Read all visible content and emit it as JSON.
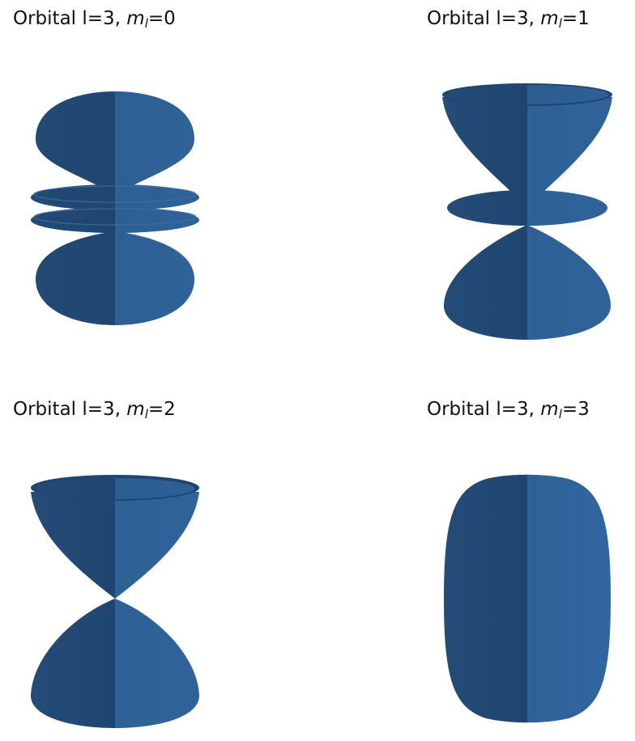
{
  "colors": {
    "dark": "#1e4670",
    "mid": "#2a5a8c",
    "light": "#3a78b8",
    "rim": "#234f7d"
  },
  "panels": [
    {
      "prefix": "Orbital l=3, ",
      "m": "m",
      "sub": "l",
      "eq": "=0",
      "shape": "orbital-l3-m0"
    },
    {
      "prefix": "Orbital l=3, ",
      "m": "m",
      "sub": "l",
      "eq": "=1",
      "shape": "orbital-l3-m1"
    },
    {
      "prefix": "Orbital l=3, ",
      "m": "m",
      "sub": "l",
      "eq": "=2",
      "shape": "orbital-l3-m2"
    },
    {
      "prefix": "Orbital l=3, ",
      "m": "m",
      "sub": "l",
      "eq": "=3",
      "shape": "orbital-l3-m3"
    }
  ]
}
